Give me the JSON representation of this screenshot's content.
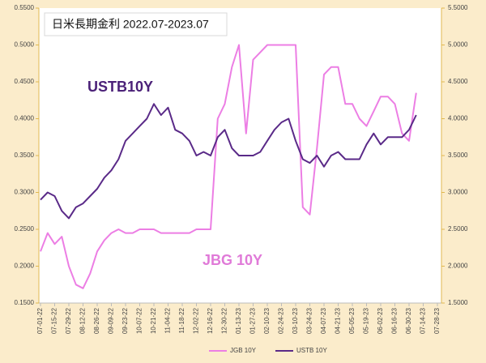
{
  "chart_data": {
    "type": "line",
    "title": "日米長期金利 2022.07-2023.07",
    "annotations": [
      "USTB10Y",
      "JBG 10Y"
    ],
    "x": [
      "07-01-22",
      "07-08-22",
      "07-15-22",
      "07-22-22",
      "07-29-22",
      "08-05-22",
      "08-12-22",
      "08-19-22",
      "08-26-22",
      "09-02-22",
      "09-09-22",
      "09-16-22",
      "09-23-22",
      "09-30-22",
      "10-07-22",
      "10-14-22",
      "10-21-22",
      "10-28-22",
      "11-04-22",
      "11-11-22",
      "11-18-22",
      "11-25-22",
      "12-02-22",
      "12-09-22",
      "12-16-22",
      "12-23-22",
      "12-30-22",
      "01-06-23",
      "01-13-23",
      "01-20-23",
      "01-27-23",
      "02-03-23",
      "02-10-23",
      "02-17-23",
      "02-24-23",
      "03-03-23",
      "03-10-23",
      "03-17-23",
      "03-24-23",
      "03-31-23",
      "04-07-23",
      "04-14-23",
      "04-21-23",
      "04-28-23",
      "05-05-23",
      "05-12-23",
      "05-19-23",
      "05-26-23",
      "06-02-23",
      "06-09-23",
      "06-16-23",
      "06-23-23",
      "06-30-23",
      "07-07-23"
    ],
    "series": [
      {
        "name": "JGB 10Y",
        "color": "#ec7ee4",
        "axis": "y",
        "values": [
          0.22,
          0.245,
          0.23,
          0.24,
          0.2,
          0.175,
          0.17,
          0.19,
          0.22,
          0.235,
          0.245,
          0.25,
          0.245,
          0.245,
          0.25,
          0.25,
          0.25,
          0.245,
          0.245,
          0.245,
          0.245,
          0.245,
          0.25,
          0.25,
          0.25,
          0.4,
          0.42,
          0.47,
          0.5,
          0.38,
          0.48,
          0.49,
          0.5,
          0.5,
          0.5,
          0.5,
          0.5,
          0.28,
          0.27,
          0.36,
          0.46,
          0.47,
          0.47,
          0.42,
          0.42,
          0.4,
          0.39,
          0.41,
          0.43,
          0.43,
          0.42,
          0.38,
          0.37,
          0.435
        ]
      },
      {
        "name": "USTB 10Y",
        "color": "#5a2a88",
        "axis": "y2",
        "values": [
          2.9,
          3.0,
          2.95,
          2.75,
          2.65,
          2.8,
          2.85,
          2.95,
          3.05,
          3.2,
          3.3,
          3.45,
          3.7,
          3.8,
          3.9,
          4.0,
          4.2,
          4.05,
          4.15,
          3.85,
          3.8,
          3.7,
          3.5,
          3.55,
          3.5,
          3.75,
          3.85,
          3.6,
          3.5,
          3.5,
          3.5,
          3.55,
          3.7,
          3.85,
          3.95,
          4.0,
          3.7,
          3.45,
          3.4,
          3.5,
          3.35,
          3.5,
          3.55,
          3.45,
          3.45,
          3.45,
          3.65,
          3.8,
          3.65,
          3.75,
          3.75,
          3.75,
          3.85,
          4.05
        ]
      }
    ],
    "xlim": [
      "07-01-22",
      "07-28-23"
    ],
    "xticks": [
      "07-01-22",
      "07-15-22",
      "07-29-22",
      "08-12-22",
      "08-26-22",
      "09-09-22",
      "09-23-22",
      "10-07-22",
      "10-21-22",
      "11-04-22",
      "11-18-22",
      "12-02-22",
      "12-16-22",
      "12-30-22",
      "01-13-23",
      "01-27-23",
      "02-10-23",
      "02-24-23",
      "03-10-23",
      "03-24-23",
      "04-07-23",
      "04-21-23",
      "05-05-23",
      "05-19-23",
      "06-02-23",
      "06-16-23",
      "06-30-23",
      "07-14-23",
      "07-28-23"
    ],
    "ylim": [
      0.15,
      0.55
    ],
    "yticks": [
      {
        "value": 0.15,
        "label": "0.1500"
      },
      {
        "value": 0.2,
        "label": "0.2000"
      },
      {
        "value": 0.25,
        "label": "0.2500"
      },
      {
        "value": 0.3,
        "label": "0.3000"
      },
      {
        "value": 0.35,
        "label": "0.3500"
      },
      {
        "value": 0.4,
        "label": "0.4000"
      },
      {
        "value": 0.45,
        "label": "0.4500"
      },
      {
        "value": 0.5,
        "label": "0.5000"
      },
      {
        "value": 0.55,
        "label": "0.5500"
      }
    ],
    "y2lim": [
      1.5,
      5.5
    ],
    "y2ticks": [
      {
        "value": 1.5,
        "label": "1.5000"
      },
      {
        "value": 2,
        "label": "2.0000"
      },
      {
        "value": 2.5,
        "label": "2.5000"
      },
      {
        "value": 3,
        "label": "3.0000"
      },
      {
        "value": 3.5,
        "label": "3.5000"
      },
      {
        "value": 4,
        "label": "4.0000"
      },
      {
        "value": 4.5,
        "label": "4.5000"
      },
      {
        "value": 5,
        "label": "5.0000"
      },
      {
        "value": 5.5,
        "label": "5.5000"
      }
    ],
    "grid": false,
    "legend": "bottom"
  }
}
